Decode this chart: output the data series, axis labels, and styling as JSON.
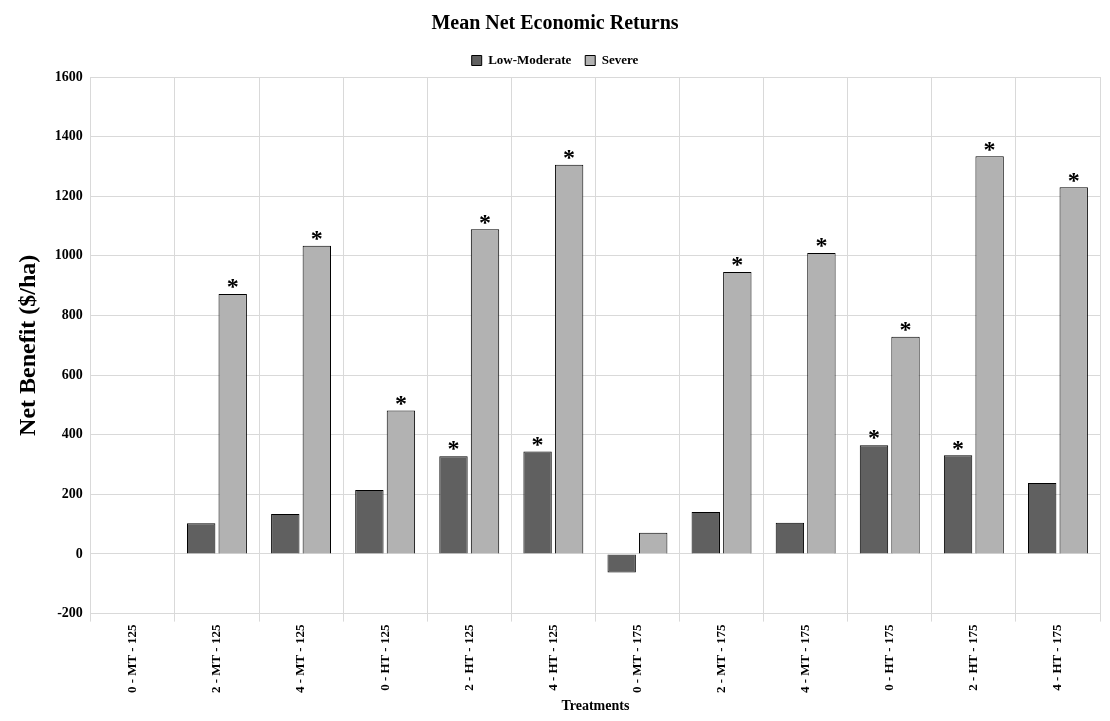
{
  "chart_data": {
    "type": "bar",
    "title": "Mean Net Economic Returns",
    "xlabel": "Treatments",
    "ylabel": "Net Benefit ($/ha)",
    "categories": [
      "0 - MT - 125",
      "2 - MT - 125",
      "4 - MT - 125",
      "0 - HT - 125",
      "2 - HT - 125",
      "4 - HT - 125",
      "0 - MT - 175",
      "2 - MT - 175",
      "4 - MT - 175",
      "0 - HT - 175",
      "2 - HT - 175",
      "4 - HT - 175"
    ],
    "series": [
      {
        "name": "Low-Moderate",
        "color": "#606060",
        "values": [
          null,
          103,
          134,
          215,
          328,
          344,
          -62,
          141,
          105,
          365,
          331,
          238
        ],
        "value_labels": [
          null,
          null,
          null,
          null,
          "*",
          "*",
          null,
          null,
          null,
          "*",
          "*",
          null
        ]
      },
      {
        "name": "Severe",
        "color": "#b2b2b2",
        "values": [
          null,
          872,
          1034,
          481,
          1089,
          1306,
          71,
          946,
          1010,
          729,
          1334,
          1230
        ],
        "value_labels": [
          null,
          "*",
          "*",
          "*",
          "*",
          "*",
          null,
          "*",
          "*",
          "*",
          "*",
          "*"
        ]
      }
    ],
    "ylim": [
      -200,
      1600
    ],
    "yticks": [
      -200,
      0,
      200,
      400,
      600,
      800,
      1000,
      1200,
      1400,
      1600
    ],
    "grid": true,
    "legend": "top"
  }
}
